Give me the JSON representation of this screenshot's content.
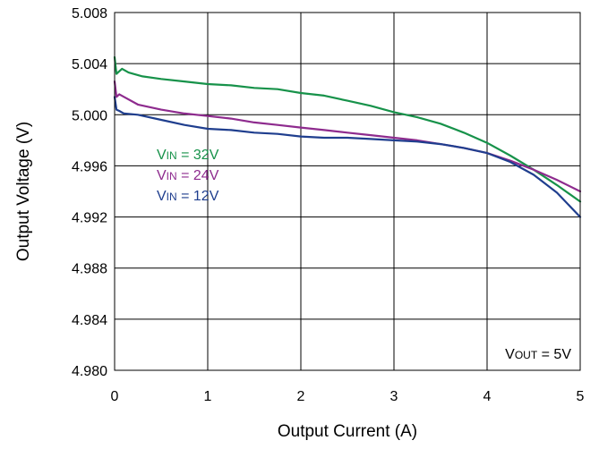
{
  "chart_data": {
    "type": "line",
    "xlabel": "Output Current (A)",
    "ylabel": "Output Voltage (V)",
    "xlim": [
      0,
      5
    ],
    "ylim": [
      4.98,
      5.008
    ],
    "grid": true,
    "x_ticks": [
      0,
      1,
      2,
      3,
      4,
      5
    ],
    "x_tick_labels": [
      "0",
      "1",
      "2",
      "3",
      "4",
      "5"
    ],
    "y_ticks": [
      4.98,
      4.984,
      4.988,
      4.992,
      4.996,
      5.0,
      5.004,
      5.008
    ],
    "y_tick_labels": [
      "4.980",
      "4.984",
      "4.988",
      "4.992",
      "4.996",
      "5.000",
      "5.004",
      "5.008"
    ],
    "annotation": {
      "main": "V",
      "sub": "OUT",
      "rest": " = 5V"
    },
    "series": [
      {
        "name": "VIN = 32V",
        "label_main": "V",
        "label_sub": "IN",
        "label_rest": " = 32V",
        "color": "#17924a",
        "points": [
          [
            0,
            5.0045
          ],
          [
            0.02,
            5.0032
          ],
          [
            0.05,
            5.0034
          ],
          [
            0.08,
            5.0036
          ],
          [
            0.15,
            5.0033
          ],
          [
            0.3,
            5.003
          ],
          [
            0.5,
            5.0028
          ],
          [
            0.75,
            5.0026
          ],
          [
            1.0,
            5.0024
          ],
          [
            1.25,
            5.0023
          ],
          [
            1.5,
            5.0021
          ],
          [
            1.75,
            5.002
          ],
          [
            2.0,
            5.0017
          ],
          [
            2.25,
            5.0015
          ],
          [
            2.5,
            5.0011
          ],
          [
            2.75,
            5.0007
          ],
          [
            3.0,
            5.0002
          ],
          [
            3.25,
            4.9998
          ],
          [
            3.5,
            4.9993
          ],
          [
            3.75,
            4.9986
          ],
          [
            4.0,
            4.9978
          ],
          [
            4.25,
            4.9968
          ],
          [
            4.5,
            4.9957
          ],
          [
            4.75,
            4.9945
          ],
          [
            5.0,
            4.9932
          ]
        ]
      },
      {
        "name": "VIN = 24V",
        "label_main": "V",
        "label_sub": "IN",
        "label_rest": " = 24V",
        "color": "#8e2b8e",
        "points": [
          [
            0,
            5.0026
          ],
          [
            0.02,
            5.0014
          ],
          [
            0.05,
            5.0016
          ],
          [
            0.1,
            5.0014
          ],
          [
            0.25,
            5.0008
          ],
          [
            0.5,
            5.0004
          ],
          [
            0.75,
            5.0001
          ],
          [
            1.0,
            4.9999
          ],
          [
            1.25,
            4.9997
          ],
          [
            1.5,
            4.9994
          ],
          [
            1.75,
            4.9992
          ],
          [
            2.0,
            4.999
          ],
          [
            2.25,
            4.9988
          ],
          [
            2.5,
            4.9986
          ],
          [
            2.75,
            4.9984
          ],
          [
            3.0,
            4.9982
          ],
          [
            3.25,
            4.998
          ],
          [
            3.5,
            4.9977
          ],
          [
            3.75,
            4.9974
          ],
          [
            4.0,
            4.997
          ],
          [
            4.25,
            4.9964
          ],
          [
            4.5,
            4.9957
          ],
          [
            4.75,
            4.9949
          ],
          [
            5.0,
            4.994
          ]
        ]
      },
      {
        "name": "VIN = 12V",
        "label_main": "V",
        "label_sub": "IN",
        "label_rest": " = 12V",
        "color": "#1f3e8e",
        "points": [
          [
            0,
            5.0014
          ],
          [
            0.02,
            5.0004
          ],
          [
            0.05,
            5.0003
          ],
          [
            0.1,
            5.0001
          ],
          [
            0.25,
            5.0
          ],
          [
            0.5,
            4.9996
          ],
          [
            0.75,
            4.9992
          ],
          [
            1.0,
            4.9989
          ],
          [
            1.25,
            4.9988
          ],
          [
            1.5,
            4.9986
          ],
          [
            1.75,
            4.9985
          ],
          [
            2.0,
            4.9983
          ],
          [
            2.25,
            4.9982
          ],
          [
            2.5,
            4.9982
          ],
          [
            2.75,
            4.9981
          ],
          [
            3.0,
            4.998
          ],
          [
            3.25,
            4.9979
          ],
          [
            3.5,
            4.9977
          ],
          [
            3.75,
            4.9974
          ],
          [
            4.0,
            4.997
          ],
          [
            4.25,
            4.9963
          ],
          [
            4.5,
            4.9953
          ],
          [
            4.75,
            4.9939
          ],
          [
            5.0,
            4.992
          ]
        ]
      }
    ]
  }
}
